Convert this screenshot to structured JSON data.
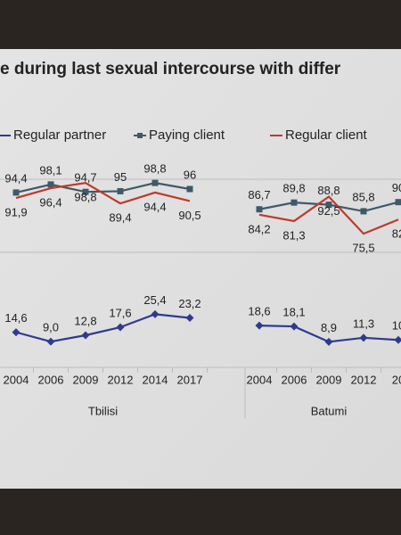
{
  "chart_data": [
    {
      "type": "line",
      "title": "e during last sexual intercourse with differ",
      "categories": [
        "2004",
        "2006",
        "2009",
        "2012",
        "2014",
        "2017",
        null,
        "2004",
        "2006",
        "2009",
        "2012",
        "20"
      ],
      "group_labels": [
        "Tbilisi",
        "Batumi"
      ],
      "ylim": [
        60,
        105
      ],
      "series": [
        {
          "name": "Paying client",
          "color": "#3e5a68",
          "marker": "square",
          "values": [
            94.4,
            98.1,
            94.7,
            95,
            98.8,
            96,
            null,
            86.7,
            89.8,
            88.8,
            85.8,
            90
          ],
          "value_labels": [
            "94,4",
            "98,1",
            "94,7",
            "95",
            "98,8",
            "96",
            null,
            "86,7",
            "89,8",
            "88,8",
            "85,8",
            "90"
          ]
        },
        {
          "name": "Regular client",
          "color": "#c0392b",
          "marker": "none",
          "values": [
            91.9,
            96.4,
            98.8,
            89.4,
            94.4,
            90.5,
            null,
            84.2,
            81.3,
            92.5,
            75.5,
            82
          ],
          "value_labels": [
            "91,9",
            "96,4",
            "98,8",
            "89,4",
            "94,4",
            "90,5",
            null,
            "84,2",
            "81,3",
            "92,5",
            "75,5",
            "82"
          ]
        }
      ]
    },
    {
      "type": "line",
      "ylim": [
        0,
        40
      ],
      "series": [
        {
          "name": "Regular partner",
          "color": "#2f3a8f",
          "marker": "diamond",
          "values": [
            14.6,
            9,
            12.8,
            17.6,
            25.4,
            23.2,
            null,
            18.6,
            18.1,
            8.9,
            11.3,
            10
          ],
          "value_labels": [
            "14,6",
            "9,0",
            "12,8",
            "17,6",
            "25,4",
            "23,2",
            null,
            "18,6",
            "18,1",
            "8,9",
            "11,3",
            "10"
          ]
        }
      ]
    }
  ]
}
